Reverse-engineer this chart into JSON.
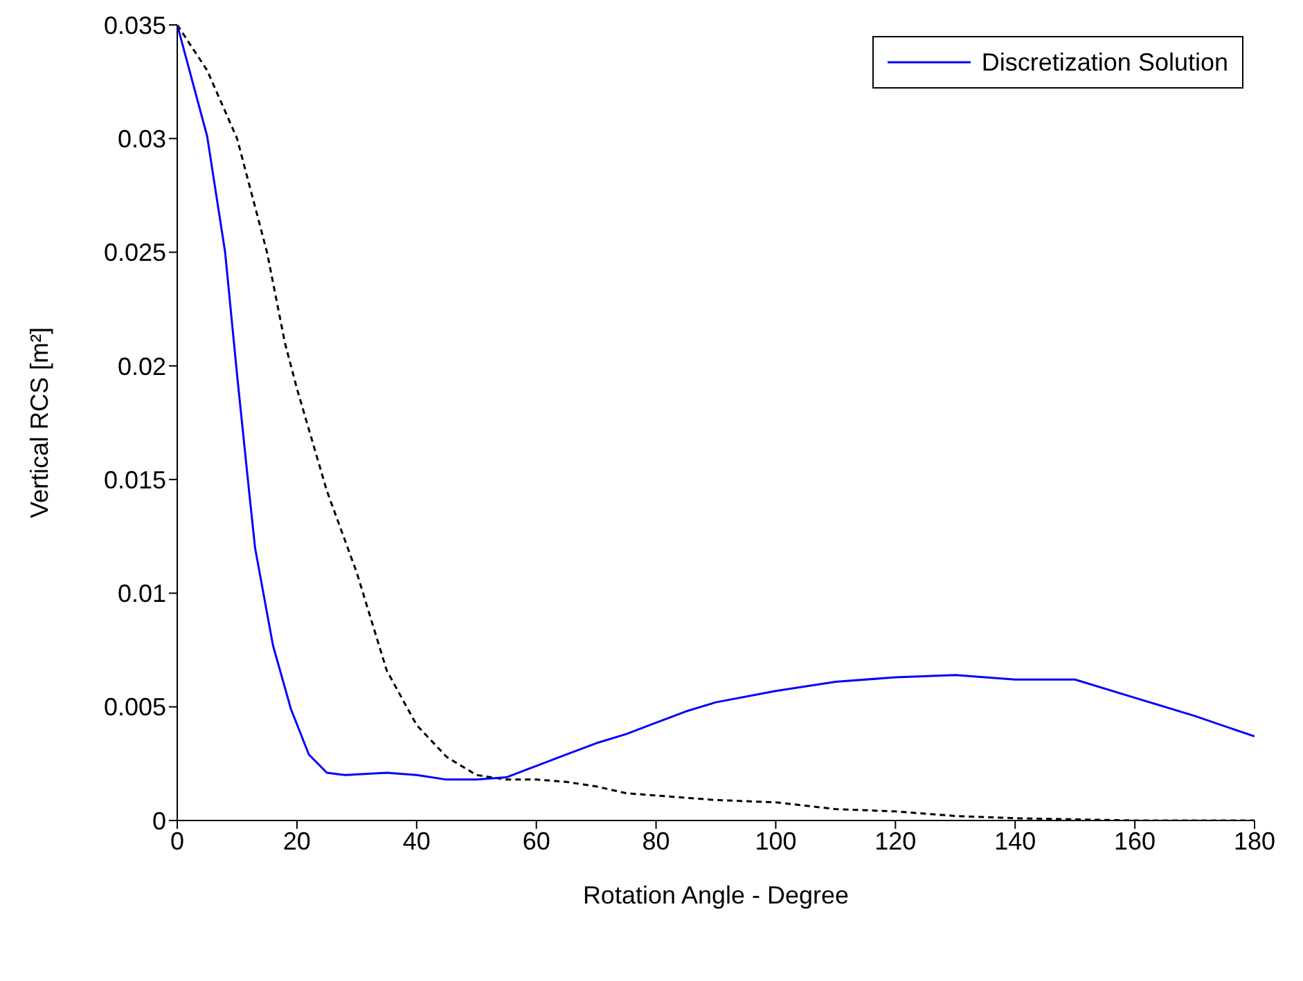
{
  "chart_data": {
    "type": "line",
    "xlabel": "Rotation Angle  - Degree",
    "ylabel": "Vertical RCS [m²]",
    "xlim": [
      0,
      180
    ],
    "xticks": [
      0,
      20,
      40,
      60,
      80,
      100,
      120,
      140,
      160,
      180
    ],
    "ylim": [
      0,
      0.035
    ],
    "yticks": [
      0,
      0.005,
      0.01,
      0.015,
      0.02,
      0.025,
      0.03,
      0.035
    ],
    "legend": "top right",
    "series": [
      {
        "color": "#000000",
        "line_style": "dashed",
        "x": [
          0,
          5,
          10,
          12,
          15,
          18,
          20,
          25,
          30,
          35,
          40,
          45,
          50,
          55,
          60,
          65,
          70,
          75,
          80,
          90,
          100,
          110,
          120,
          130,
          140,
          150,
          160,
          180
        ],
        "values": [
          0.035,
          0.033,
          0.03,
          0.028,
          0.025,
          0.021,
          0.019,
          0.0145,
          0.0109,
          0.0066,
          0.0042,
          0.0028,
          0.002,
          0.0018,
          0.0018,
          0.0017,
          0.0015,
          0.0012,
          0.0011,
          0.0009,
          0.0008,
          0.0005,
          0.0004,
          0.0002,
          0.0001,
          5e-05,
          0,
          0
        ]
      },
      {
        "name": "Discretization Solution",
        "color": "#0000ff",
        "line_style": "solid",
        "x": [
          0,
          5,
          8,
          10,
          12,
          13,
          16,
          19,
          22,
          25,
          28,
          35,
          40,
          45,
          50,
          55,
          60,
          65,
          70,
          75,
          80,
          85,
          90,
          100,
          110,
          120,
          130,
          140,
          150,
          160,
          170,
          180
        ],
        "values": [
          0.035,
          0.0301,
          0.025,
          0.0196,
          0.0145,
          0.012,
          0.0077,
          0.0049,
          0.0029,
          0.0021,
          0.002,
          0.0021,
          0.002,
          0.0018,
          0.0018,
          0.0019,
          0.0024,
          0.0029,
          0.0034,
          0.0038,
          0.0043,
          0.0048,
          0.0052,
          0.0057,
          0.0061,
          0.0063,
          0.0064,
          0.0062,
          0.0062,
          0.0054,
          0.0046,
          0.0037
        ]
      }
    ]
  }
}
